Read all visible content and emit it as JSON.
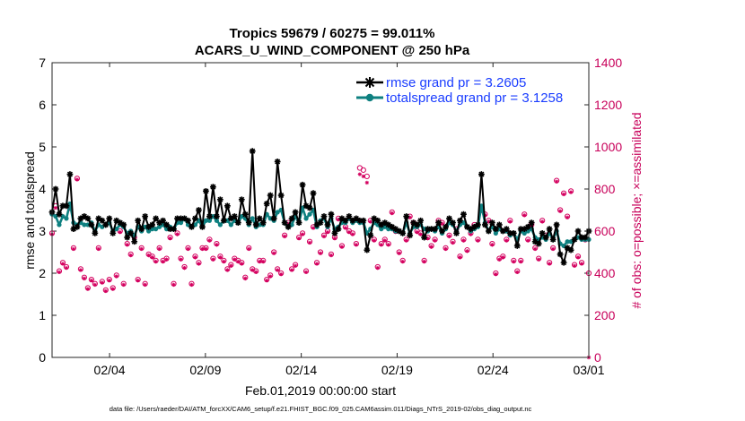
{
  "chart_data": {
    "type": "line",
    "title_line1": "Tropics 59679 / 60275 = 99.011%",
    "title_line2": "ACARS_U_WIND_COMPONENT @ 250 hPa",
    "xlabel": "Feb.01,2019 00:00:00 start",
    "ylabel_left": "rmse and totalspread",
    "ylabel_right": "# of obs: o=possible; ×=assimilated",
    "footnote": "data file: /Users/raeder/DAI/ATM_forcXX/CAM6_setup/f.e21.FHIST_BGC.f09_025.CAM6assim.011/Diags_NTrS_2019-02/obs_diag_output.nc",
    "x_range": [
      0,
      28
    ],
    "x_ticks": [
      3,
      8,
      13,
      18,
      23,
      28
    ],
    "x_tick_labels": [
      "02/04",
      "02/09",
      "02/14",
      "02/19",
      "02/24",
      "03/01"
    ],
    "ylim_left": [
      0,
      7
    ],
    "y_ticks_left": [
      "0",
      "1",
      "2",
      "3",
      "4",
      "5",
      "6",
      "7"
    ],
    "ylim_right": [
      0,
      1400
    ],
    "y_ticks_right": [
      "0",
      "200",
      "400",
      "600",
      "800",
      "1000",
      "1200",
      "1400"
    ],
    "legend": [
      {
        "label": "rmse grand pr = 3.2605",
        "color": "#000000"
      },
      {
        "label": "totalspread grand pr = 3.1258",
        "color": "#0e8080"
      }
    ],
    "series": [
      {
        "name": "rmse",
        "color": "#000000",
        "values": [
          3.45,
          4.0,
          3.4,
          3.6,
          3.6,
          4.35,
          3.05,
          3.1,
          3.3,
          3.35,
          3.3,
          3.15,
          2.95,
          3.3,
          3.25,
          3.15,
          3.3,
          2.95,
          3.25,
          3.2,
          3.15,
          2.85,
          2.95,
          2.75,
          3.25,
          3.05,
          3.35,
          3.1,
          3.15,
          3.3,
          3.2,
          3.25,
          3.15,
          3.05,
          3.05,
          3.3,
          3.3,
          3.3,
          3.25,
          3.1,
          3.3,
          3.5,
          3.1,
          3.95,
          3.35,
          4.05,
          3.35,
          3.75,
          3.25,
          3.6,
          3.3,
          3.35,
          3.2,
          3.75,
          3.4,
          3.2,
          4.9,
          3.15,
          3.3,
          3.2,
          3.65,
          3.85,
          3.3,
          4.65,
          3.85,
          3.2,
          3.1,
          3.3,
          3.45,
          3.2,
          4.1,
          3.6,
          3.55,
          3.9,
          3.15,
          3.2,
          3.35,
          3.15,
          3.4,
          2.95,
          3.05,
          3.3,
          3.25,
          3.35,
          3.25,
          3.3,
          3.25,
          3.25,
          2.55,
          2.9,
          3.3,
          3.25,
          3.15,
          3.2,
          3.15,
          3.1,
          3.05,
          3.0,
          2.95,
          3.35,
          2.9,
          3.2,
          3.15,
          3.25,
          2.85,
          3.05,
          3.05,
          3.05,
          3.2,
          3.0,
          3.1,
          3.3,
          3.2,
          2.95,
          3.25,
          3.4,
          3.1,
          3.05,
          3.1,
          3.15,
          4.35,
          3.15,
          3.0,
          3.2,
          3.05,
          3.15,
          3.0,
          3.05,
          2.95,
          2.95,
          2.65,
          3.05,
          3.05,
          3.1,
          3.2,
          2.75,
          2.7,
          2.95,
          2.85,
          3.05,
          2.8,
          3.15,
          2.45,
          2.25,
          2.6,
          2.55,
          2.8,
          3.0,
          2.85,
          2.85,
          3.0
        ]
      },
      {
        "name": "totalspread",
        "color": "#0e8080",
        "values": [
          3.4,
          3.35,
          3.15,
          3.35,
          3.3,
          3.65,
          3.2,
          3.15,
          3.2,
          3.15,
          3.15,
          3.2,
          3.0,
          3.15,
          3.1,
          3.15,
          3.2,
          3.0,
          3.05,
          3.15,
          3.1,
          2.95,
          3.0,
          2.9,
          3.1,
          3.0,
          3.1,
          3.0,
          3.05,
          3.05,
          3.1,
          3.15,
          3.05,
          3.1,
          3.05,
          3.2,
          3.2,
          3.3,
          3.15,
          3.1,
          3.15,
          3.25,
          3.1,
          3.25,
          3.25,
          3.35,
          3.25,
          3.15,
          3.25,
          3.25,
          3.15,
          3.25,
          3.2,
          3.35,
          3.3,
          3.15,
          3.3,
          3.1,
          3.15,
          3.15,
          3.4,
          3.3,
          3.25,
          3.45,
          3.5,
          3.2,
          3.1,
          3.15,
          3.35,
          3.2,
          3.55,
          3.3,
          3.4,
          3.5,
          3.1,
          3.25,
          3.3,
          3.1,
          3.3,
          3.05,
          3.1,
          3.2,
          3.2,
          3.3,
          3.2,
          3.25,
          3.2,
          3.2,
          2.95,
          3.05,
          3.2,
          3.15,
          3.05,
          3.1,
          3.05,
          3.05,
          3.0,
          3.0,
          2.95,
          3.2,
          2.95,
          3.1,
          3.1,
          3.15,
          3.05,
          3.0,
          3.05,
          3.0,
          3.1,
          2.95,
          3.05,
          3.2,
          3.15,
          3.0,
          3.15,
          3.2,
          3.1,
          3.0,
          3.05,
          3.1,
          3.6,
          3.2,
          3.0,
          3.1,
          2.95,
          3.05,
          3.0,
          3.0,
          2.9,
          2.95,
          2.8,
          3.0,
          2.95,
          3.0,
          3.05,
          2.85,
          2.8,
          2.85,
          2.8,
          2.95,
          2.8,
          3.0,
          2.7,
          2.65,
          2.75,
          2.75,
          2.8,
          2.85,
          2.8,
          2.8,
          2.8
        ]
      },
      {
        "name": "obs possible",
        "color": "#d4005f",
        "values": [
          590,
          720,
          410,
          450,
          430,
          710,
          520,
          850,
          420,
          380,
          330,
          370,
          350,
          520,
          360,
          320,
          370,
          330,
          390,
          600,
          350,
          540,
          490,
          570,
          370,
          520,
          350,
          490,
          480,
          460,
          520,
          460,
          470,
          570,
          350,
          590,
          470,
          430,
          520,
          350,
          480,
          450,
          520,
          520,
          560,
          470,
          540,
          480,
          460,
          420,
          440,
          470,
          460,
          450,
          380,
          520,
          420,
          410,
          460,
          460,
          370,
          390,
          500,
          420,
          400,
          580,
          640,
          420,
          440,
          570,
          590,
          410,
          550,
          620,
          450,
          500,
          580,
          600,
          490,
          570,
          660,
          530,
          620,
          600,
          590,
          540,
          900,
          890,
          860,
          650,
          560,
          430,
          540,
          560,
          540,
          690,
          600,
          500,
          460,
          560,
          670,
          640,
          600,
          590,
          460,
          570,
          530,
          560,
          650,
          640,
          520,
          580,
          550,
          610,
          480,
          560,
          510,
          590,
          630,
          560,
          700,
          680,
          650,
          540,
          400,
          470,
          480,
          560,
          650,
          460,
          410,
          460,
          680,
          560,
          630,
          520,
          470,
          650,
          580,
          450,
          520,
          840,
          700,
          780,
          670,
          790,
          440,
          480,
          450,
          560,
          400
        ]
      },
      {
        "name": "obs assimilated",
        "color": "#d4005f",
        "values": [
          585,
          710,
          405,
          445,
          425,
          705,
          515,
          845,
          415,
          375,
          325,
          365,
          345,
          515,
          355,
          315,
          365,
          325,
          385,
          595,
          345,
          535,
          485,
          565,
          365,
          515,
          345,
          485,
          475,
          455,
          515,
          455,
          465,
          565,
          345,
          585,
          465,
          425,
          515,
          345,
          475,
          445,
          515,
          515,
          555,
          465,
          535,
          475,
          455,
          415,
          435,
          465,
          455,
          445,
          375,
          515,
          415,
          405,
          455,
          455,
          365,
          385,
          495,
          415,
          395,
          575,
          635,
          415,
          435,
          565,
          585,
          405,
          545,
          615,
          445,
          495,
          575,
          595,
          485,
          565,
          655,
          525,
          615,
          595,
          585,
          535,
          870,
          860,
          830,
          645,
          555,
          425,
          535,
          555,
          535,
          685,
          595,
          495,
          455,
          555,
          665,
          635,
          595,
          585,
          455,
          565,
          525,
          555,
          645,
          635,
          515,
          575,
          545,
          605,
          475,
          555,
          505,
          585,
          625,
          555,
          695,
          675,
          645,
          535,
          395,
          465,
          475,
          555,
          645,
          455,
          405,
          455,
          675,
          555,
          625,
          515,
          465,
          645,
          575,
          445,
          515,
          835,
          695,
          775,
          665,
          785,
          435,
          475,
          445,
          555,
          0
        ]
      }
    ]
  }
}
